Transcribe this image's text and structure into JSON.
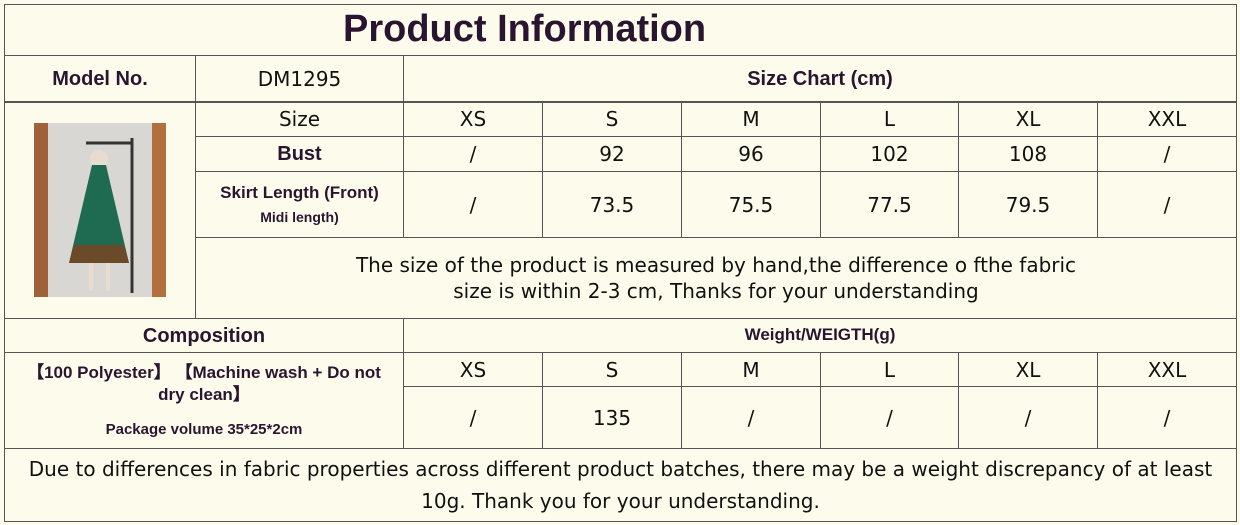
{
  "title": "Product Information",
  "model": {
    "label": "Model No.",
    "value": "DM1295"
  },
  "size_chart": {
    "title": "Size Chart (cm)",
    "header": "Size",
    "sizes": [
      "XS",
      "S",
      "M",
      "L",
      "XL",
      "XXL"
    ],
    "rows": [
      {
        "label": "Bust",
        "values": [
          "/",
          "92",
          "96",
          "102",
          "108",
          "/"
        ]
      },
      {
        "label": "Skirt Length (Front)",
        "sublabel": "Midi length)",
        "values": [
          "/",
          "73.5",
          "75.5",
          "77.5",
          "79.5",
          "/"
        ]
      }
    ],
    "note": [
      "The size of the product is measured by hand,the difference o fthe fabric",
      "size is within 2-3 cm, Thanks for your understanding"
    ]
  },
  "composition": {
    "label": "Composition",
    "text": "【100 Polyester】 【Machine wash + Do not dry clean】",
    "package": "Package volume 35*25*2cm"
  },
  "weight": {
    "title": "Weight/WEIGTH(g)",
    "sizes": [
      "XS",
      "S",
      "M",
      "L",
      "XL",
      "XXL"
    ],
    "values": [
      "/",
      "135",
      "/",
      "/",
      "/",
      "/"
    ]
  },
  "footer": "Due to differences in fabric properties across different product batches, there may be a weight discrepancy of at least 10g. Thank you for your understanding."
}
